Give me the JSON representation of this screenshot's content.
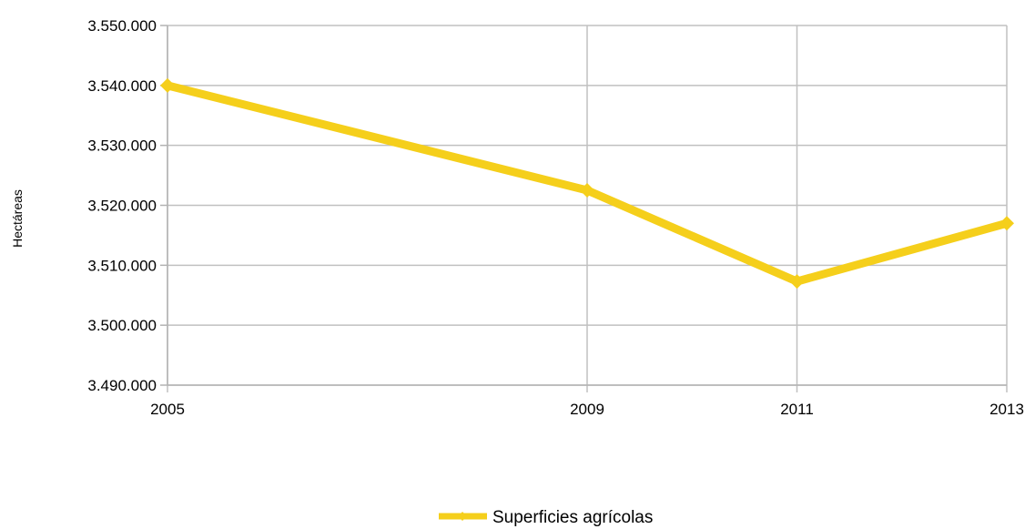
{
  "chart_data": {
    "type": "line",
    "title": "",
    "xlabel": "",
    "ylabel": "Hectáreas",
    "categories": [
      "2005",
      "2009",
      "2011",
      "2013"
    ],
    "series": [
      {
        "name": "Superficies agrícolas",
        "values": [
          3540000,
          3522500,
          3507300,
          3517000
        ],
        "color": "#f5cf1b"
      }
    ],
    "ylim": [
      3490000,
      3550000
    ],
    "y_ticks": [
      3490000,
      3500000,
      3510000,
      3520000,
      3530000,
      3540000,
      3550000
    ],
    "y_tick_labels": [
      "3.490.000",
      "3.500.000",
      "3.510.000",
      "3.520.000",
      "3.530.000",
      "3.540.000",
      "3.550.000"
    ],
    "x_values": [
      2005,
      2009,
      2011,
      2013
    ],
    "xlim": [
      2005,
      2013
    ],
    "grid": true,
    "legend_position": "bottom",
    "colors": {
      "grid": "#c0c0c0",
      "axis": "#b3b3b3",
      "line": "#f5cf1b"
    }
  }
}
